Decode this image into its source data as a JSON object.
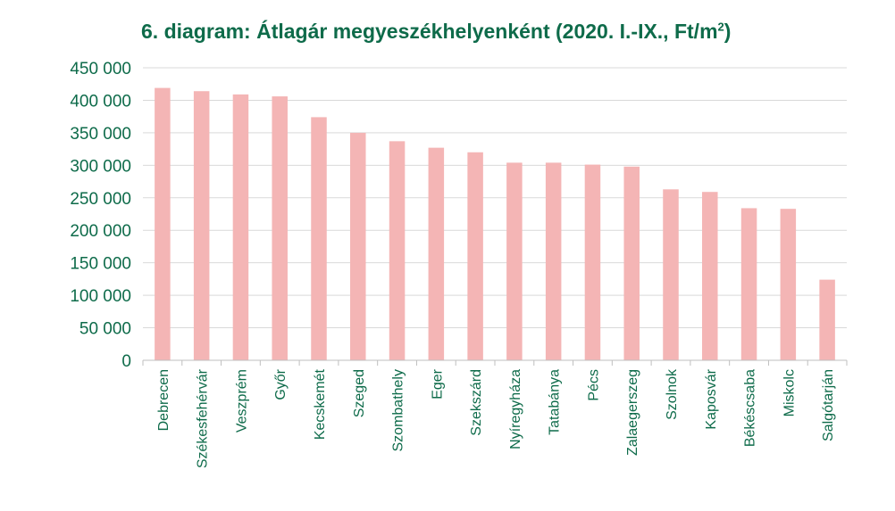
{
  "chart_data": {
    "type": "bar",
    "title_main": "6. diagram: Átlagár megyeszékhelyenként (2020. I.-IX., Ft/m",
    "title_sup": "2",
    "title_end": ")",
    "xlabel": "",
    "ylabel": "",
    "ylim": [
      0,
      450000
    ],
    "yticks": [
      "0",
      "50 000",
      "100 000",
      "150 000",
      "200 000",
      "250 000",
      "300 000",
      "350 000",
      "400 000",
      "450 000"
    ],
    "ytick_values": [
      0,
      50000,
      100000,
      150000,
      200000,
      250000,
      300000,
      350000,
      400000,
      450000
    ],
    "grid": true,
    "categories": [
      "Debrecen",
      "Székesfehérvár",
      "Veszprém",
      "Győr",
      "Kecskemét",
      "Szeged",
      "Szombathely",
      "Eger",
      "Szekszárd",
      "Nyíregyháza",
      "Tatabánya",
      "Pécs",
      "Zalaegerszeg",
      "Szolnok",
      "Kaposvár",
      "Békéscsaba",
      "Miskolc",
      "Salgótarján"
    ],
    "values": [
      419000,
      414000,
      409000,
      406000,
      374000,
      350000,
      337000,
      327000,
      320000,
      304000,
      304000,
      301000,
      298000,
      263000,
      259000,
      234000,
      233000,
      124000
    ],
    "colors": {
      "bar": "#f4b5b5",
      "text": "#0e6b4a",
      "grid": "#d9d9d9",
      "axis": "#bfbfbf"
    }
  }
}
